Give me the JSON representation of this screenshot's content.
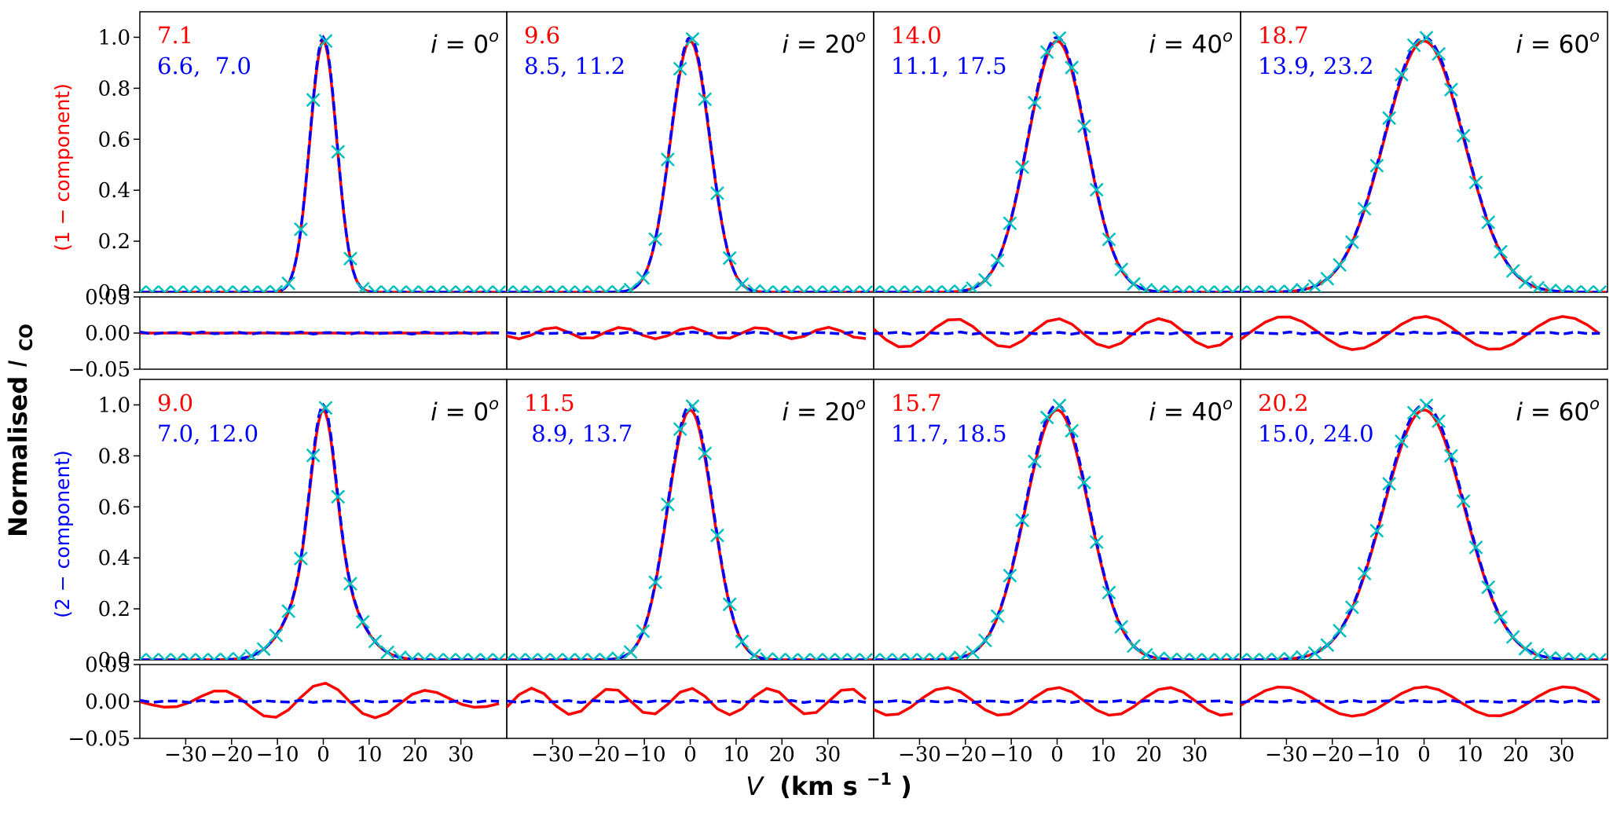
{
  "chart_data": {
    "type": "line",
    "ylabel_main": "Normalised",
    "ylabel_sym": "I",
    "ylabel_sub": "CO",
    "xlabel_sym": "V",
    "xlabel_unit": "(km s",
    "xlabel_exp": "−1",
    "xlabel_close": ")",
    "row_labels": [
      "(1 − component)",
      "(2 − component)"
    ],
    "row_label_colors": [
      "#ff0000",
      "#0000ff"
    ],
    "xlim": [
      -40,
      40
    ],
    "ylim_main": [
      0,
      1.1
    ],
    "ylim_resid": [
      -0.05,
      0.05
    ],
    "x_ticks": [
      -30,
      -20,
      -10,
      0,
      10,
      20,
      30
    ],
    "x_tick_labels": [
      "−30",
      "−20",
      "−10",
      "0",
      "10",
      "20",
      "30"
    ],
    "y_ticks_main": [
      0.0,
      0.2,
      0.4,
      0.6,
      0.8,
      1.0
    ],
    "y_tick_labels_main": [
      "0.0",
      "0.2",
      "0.4",
      "0.6",
      "0.8",
      "1.0"
    ],
    "y_ticks_resid": [
      -0.05,
      0.0,
      0.05
    ],
    "y_tick_labels_resid": [
      "−0.05",
      "0.00",
      "0.05"
    ],
    "inclination_prefix": "i = ",
    "inclination_suffix": "o",
    "inclinations": [
      0,
      20,
      40,
      60
    ],
    "series_styles": {
      "data": {
        "color": "#00bfbf",
        "marker": "x"
      },
      "one_comp": {
        "color": "#ff0000",
        "line": "solid"
      },
      "two_comp": {
        "color": "#0000ff",
        "line": "dashed"
      }
    },
    "panels": [
      [
        {
          "incl": 0,
          "red_label": "7.1",
          "blue_label": "6.6,  7.0",
          "sigma_data": 6.9,
          "shape": "g",
          "resid_amp": 0.0,
          "resid_pattern": "even"
        },
        {
          "incl": 20,
          "red_label": "9.6",
          "blue_label": "8.5, 11.2",
          "sigma_data": 10.1,
          "shape": "g",
          "resid_amp": 0.008,
          "resid_pattern": "even"
        },
        {
          "incl": 40,
          "red_label": "14.0",
          "blue_label": "11.1, 17.5",
          "sigma_data": 15.0,
          "shape": "g",
          "resid_amp": 0.02,
          "resid_pattern": "even"
        },
        {
          "incl": 60,
          "red_label": "18.7",
          "blue_label": "13.9, 23.2",
          "sigma_data": 20.5,
          "shape": "g",
          "resid_amp": 0.023,
          "resid_pattern": "even"
        }
      ],
      [
        {
          "incl": 0,
          "red_label": "9.0",
          "blue_label": "7.0, 12.0",
          "sigma_data": 8.6,
          "shape": "wings",
          "resid_amp": 0.028,
          "resid_pattern": "wings"
        },
        {
          "incl": 20,
          "red_label": "11.5",
          "blue_label": " 8.9, 13.7",
          "sigma_data": 11.6,
          "shape": "g",
          "resid_amp": 0.018,
          "resid_pattern": "even"
        },
        {
          "incl": 40,
          "red_label": "15.7",
          "blue_label": "11.7, 18.5",
          "sigma_data": 16.3,
          "shape": "g",
          "resid_amp": 0.019,
          "resid_pattern": "even"
        },
        {
          "incl": 60,
          "red_label": "20.2",
          "blue_label": "15.0, 24.0",
          "sigma_data": 20.8,
          "shape": "g",
          "resid_amp": 0.02,
          "resid_pattern": "even"
        }
      ]
    ]
  }
}
